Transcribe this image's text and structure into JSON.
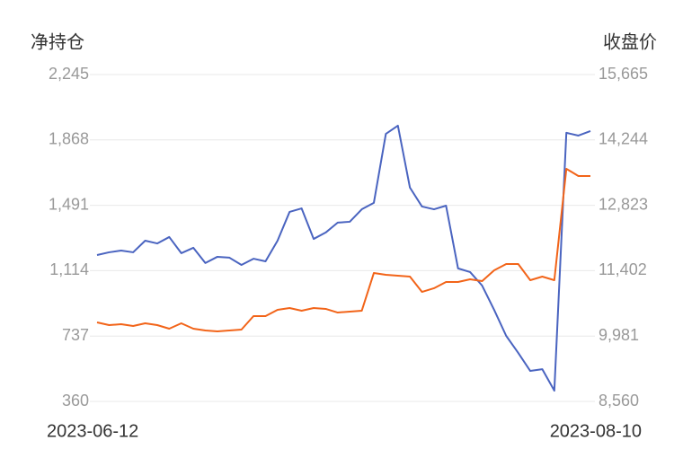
{
  "chart_data": {
    "type": "line",
    "y_title": "净持仓",
    "y2_title": "收盘价",
    "categories": [
      "2023-06-12",
      null,
      null,
      null,
      null,
      null,
      null,
      null,
      null,
      null,
      null,
      null,
      null,
      null,
      null,
      null,
      null,
      null,
      null,
      null,
      null,
      null,
      null,
      null,
      null,
      null,
      null,
      null,
      null,
      null,
      null,
      null,
      null,
      null,
      null,
      null,
      null,
      null,
      null,
      null,
      null,
      "2023-08-10"
    ],
    "series": [
      {
        "name": "净持仓",
        "color": "#4a64c0",
        "values": [
          1204,
          1220,
          1230,
          1220,
          1287,
          1271,
          1308,
          1215,
          1246,
          1158,
          1194,
          1189,
          1147,
          1183,
          1168,
          1287,
          1453,
          1473,
          1297,
          1334,
          1391,
          1396,
          1468,
          1505,
          1903,
          1950,
          1593,
          1484,
          1468,
          1489,
          1127,
          1106,
          1028,
          888,
          738,
          640,
          536,
          546,
          422,
          1909,
          1893,
          1919
        ]
      },
      {
        "name": "收盘价",
        "color": "#f26419",
        "axis": "y2",
        "values": [
          10278,
          10219,
          10239,
          10200,
          10258,
          10219,
          10141,
          10258,
          10141,
          10102,
          10083,
          10102,
          10122,
          10414,
          10414,
          10551,
          10590,
          10532,
          10590,
          10571,
          10492,
          10512,
          10532,
          11351,
          11312,
          11293,
          11273,
          10941,
          11020,
          11156,
          11156,
          11215,
          11176,
          11410,
          11547,
          11547,
          11195,
          11273,
          11195,
          13616,
          13460,
          13460
        ]
      }
    ],
    "ylim": [
      360,
      2245
    ],
    "yticks": [
      360,
      737,
      {
        "value": 1114,
        "label": "1,114"
      },
      {
        "value": 1491,
        "label": "1,491"
      },
      {
        "value": 1868,
        "label": "1,868"
      },
      {
        "value": 2245,
        "label": "2,245"
      }
    ],
    "y2lim": [
      8560,
      15665
    ],
    "y2ticks": [
      {
        "value": 8560,
        "label": "8,560"
      },
      {
        "value": 9981,
        "label": "9,981"
      },
      {
        "value": 11402,
        "label": "11,402"
      },
      {
        "value": 12823,
        "label": "12,823"
      },
      {
        "value": 14244,
        "label": "14,244"
      },
      {
        "value": 15665,
        "label": "15,665"
      }
    ],
    "grid": true
  }
}
